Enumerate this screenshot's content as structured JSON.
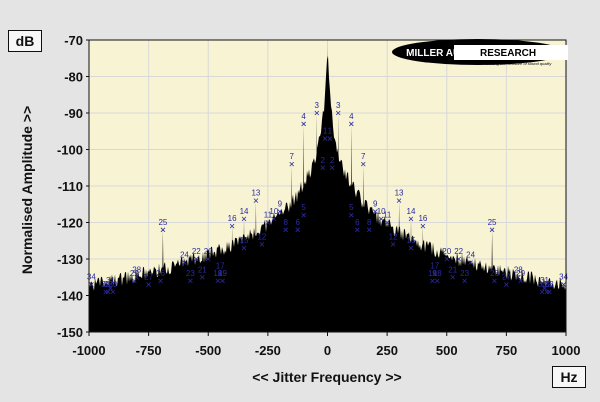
{
  "chart_data": {
    "type": "area",
    "title": "",
    "xlabel": "<< Jitter Frequency >>",
    "ylabel": "Normalised Amplitude >>",
    "y_unit": "dB",
    "x_unit": "Hz",
    "xlim": [
      -1000,
      1000
    ],
    "ylim": [
      -150,
      -70
    ],
    "x_ticks": [
      -1000,
      -750,
      -500,
      -250,
      0,
      250,
      500,
      750,
      1000
    ],
    "x_tick_labels": [
      "-1000",
      "-750",
      "-500",
      "-250",
      "0",
      "250",
      "500",
      "750",
      "1000"
    ],
    "y_ticks": [
      -70,
      -80,
      -90,
      -100,
      -110,
      -120,
      -130,
      -140,
      -150
    ],
    "y_tick_labels": [
      "-70",
      "-80",
      "-90",
      "-100",
      "-110",
      "-120",
      "-130",
      "-140",
      "-150"
    ],
    "grid": true,
    "fill_color": "#000000",
    "plot_bg": "#f7f3d3",
    "grid_color": "#d8d8d8",
    "marker_color": "#2a2aa0",
    "noise_floor_db": -141,
    "carrier_peak": {
      "x": 0,
      "y": -72
    },
    "markers": [
      {
        "n": 1,
        "x": 10,
        "y": -97
      },
      {
        "n": 1,
        "x": -10,
        "y": -97
      },
      {
        "n": 2,
        "x": 20,
        "y": -105
      },
      {
        "n": 2,
        "x": -20,
        "y": -105
      },
      {
        "n": 3,
        "x": 45,
        "y": -90
      },
      {
        "n": 3,
        "x": -45,
        "y": -90
      },
      {
        "n": 4,
        "x": 100,
        "y": -93
      },
      {
        "n": 4,
        "x": -100,
        "y": -93
      },
      {
        "n": 5,
        "x": 100,
        "y": -118
      },
      {
        "n": 5,
        "x": -100,
        "y": -118
      },
      {
        "n": 6,
        "x": 125,
        "y": -122
      },
      {
        "n": 6,
        "x": -125,
        "y": -122
      },
      {
        "n": 7,
        "x": 150,
        "y": -104
      },
      {
        "n": 7,
        "x": -150,
        "y": -104
      },
      {
        "n": 8,
        "x": 175,
        "y": -122
      },
      {
        "n": 8,
        "x": -175,
        "y": -122
      },
      {
        "n": 9,
        "x": 200,
        "y": -117
      },
      {
        "n": 9,
        "x": -200,
        "y": -117
      },
      {
        "n": 10,
        "x": 225,
        "y": -119
      },
      {
        "n": 10,
        "x": -225,
        "y": -119
      },
      {
        "n": 11,
        "x": 250,
        "y": -120
      },
      {
        "n": 11,
        "x": -250,
        "y": -120
      },
      {
        "n": 12,
        "x": 275,
        "y": -126
      },
      {
        "n": 12,
        "x": -275,
        "y": -126
      },
      {
        "n": 13,
        "x": 300,
        "y": -114
      },
      {
        "n": 13,
        "x": -300,
        "y": -114
      },
      {
        "n": 14,
        "x": 350,
        "y": -119
      },
      {
        "n": 14,
        "x": -350,
        "y": -119
      },
      {
        "n": 15,
        "x": 350,
        "y": -127
      },
      {
        "n": 15,
        "x": -350,
        "y": -127
      },
      {
        "n": 16,
        "x": 400,
        "y": -121
      },
      {
        "n": 16,
        "x": -400,
        "y": -121
      },
      {
        "n": 17,
        "x": 450,
        "y": -134
      },
      {
        "n": 17,
        "x": -450,
        "y": -134
      },
      {
        "n": 18,
        "x": 460,
        "y": -136
      },
      {
        "n": 18,
        "x": -460,
        "y": -136
      },
      {
        "n": 19,
        "x": 440,
        "y": -136
      },
      {
        "n": 19,
        "x": -440,
        "y": -136
      },
      {
        "n": 20,
        "x": 500,
        "y": -130
      },
      {
        "n": 20,
        "x": -500,
        "y": -130
      },
      {
        "n": 21,
        "x": 525,
        "y": -135
      },
      {
        "n": 21,
        "x": -525,
        "y": -135
      },
      {
        "n": 22,
        "x": 550,
        "y": -130
      },
      {
        "n": 22,
        "x": -550,
        "y": -130
      },
      {
        "n": 23,
        "x": 575,
        "y": -136
      },
      {
        "n": 23,
        "x": -575,
        "y": -136
      },
      {
        "n": 24,
        "x": 600,
        "y": -131
      },
      {
        "n": 24,
        "x": -600,
        "y": -131
      },
      {
        "n": 25,
        "x": 690,
        "y": -122
      },
      {
        "n": 25,
        "x": -690,
        "y": -122
      },
      {
        "n": 26,
        "x": 700,
        "y": -136
      },
      {
        "n": 26,
        "x": -700,
        "y": -136
      },
      {
        "n": 27,
        "x": 750,
        "y": -137
      },
      {
        "n": 27,
        "x": -750,
        "y": -137
      },
      {
        "n": 28,
        "x": 800,
        "y": -135
      },
      {
        "n": 28,
        "x": -800,
        "y": -135
      },
      {
        "n": 29,
        "x": 810,
        "y": -136
      },
      {
        "n": 29,
        "x": -810,
        "y": -136
      },
      {
        "n": 30,
        "x": 900,
        "y": -139
      },
      {
        "n": 30,
        "x": -900,
        "y": -139
      },
      {
        "n": 31,
        "x": 910,
        "y": -138
      },
      {
        "n": 31,
        "x": -910,
        "y": -138
      },
      {
        "n": 32,
        "x": 920,
        "y": -139
      },
      {
        "n": 32,
        "x": -920,
        "y": -139
      },
      {
        "n": 33,
        "x": 930,
        "y": -139
      },
      {
        "n": 33,
        "x": -930,
        "y": -139
      },
      {
        "n": 34,
        "x": 990,
        "y": -137
      },
      {
        "n": 34,
        "x": -990,
        "y": -137
      }
    ]
  },
  "logo": {
    "brand": "MILLER AUDIO RESEARCH",
    "tagline": "Getting the measure of sound quality"
  }
}
